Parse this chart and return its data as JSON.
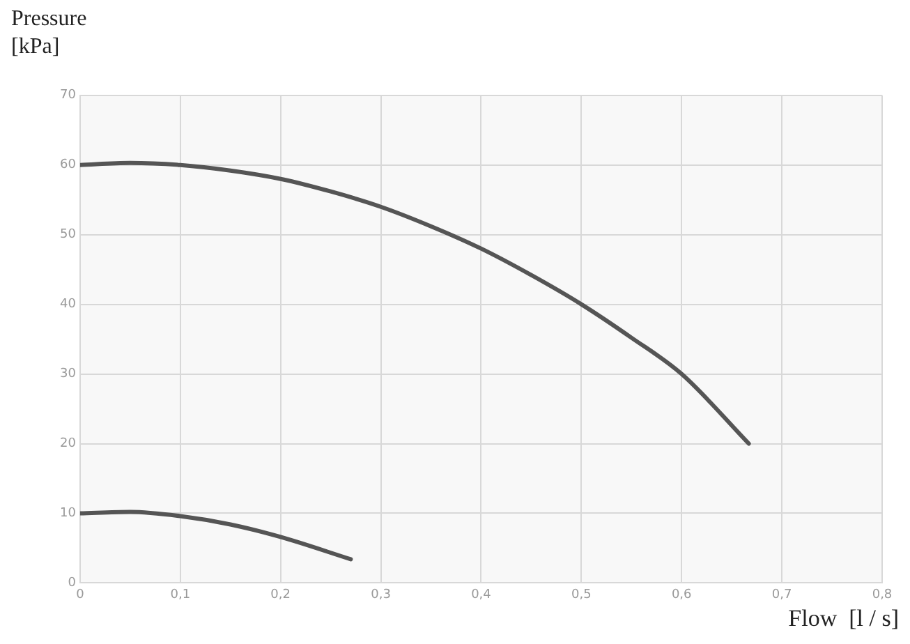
{
  "chart_data": {
    "type": "line",
    "xlabel": "Flow  [l / s]",
    "ylabel": "Pressure\n[kPa]",
    "series": [
      {
        "color": "#555555",
        "x": [
          0,
          0.05,
          0.1,
          0.15,
          0.2,
          0.25,
          0.3,
          0.35,
          0.4,
          0.45,
          0.5,
          0.55,
          0.6,
          0.667
        ],
        "values": [
          60,
          60.3,
          60,
          59.2,
          58,
          56.2,
          54,
          51.2,
          48,
          44.2,
          40,
          35.2,
          30,
          20
        ]
      },
      {
        "color": "#555555",
        "x": [
          0,
          0.05,
          0.1,
          0.15,
          0.2,
          0.27
        ],
        "values": [
          10,
          10.2,
          9.6,
          8.4,
          6.6,
          3.4
        ]
      }
    ],
    "xlim": [
      0,
      0.8
    ],
    "xticks": [
      0,
      {
        "value": 0.1,
        "label": "0,1"
      },
      {
        "value": 0.2,
        "label": "0,2"
      },
      {
        "value": 0.3,
        "label": "0,3"
      },
      {
        "value": 0.4,
        "label": "0,4"
      },
      {
        "value": 0.5,
        "label": "0,5"
      },
      {
        "value": 0.6,
        "label": "0,6"
      },
      {
        "value": 0.7,
        "label": "0,7"
      },
      {
        "value": 0.8,
        "label": "0,8"
      }
    ],
    "ylim": [
      0,
      70
    ],
    "yticks": [
      0,
      10,
      20,
      30,
      40,
      50,
      60,
      70
    ],
    "grid": true,
    "legend": false,
    "marker": "none",
    "line_style": "solid"
  }
}
